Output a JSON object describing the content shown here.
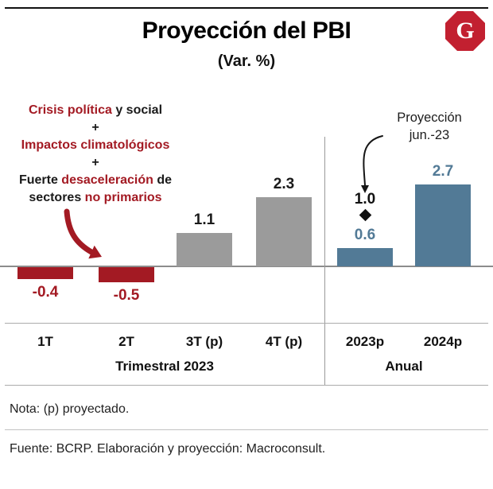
{
  "header": {
    "title": "Proyección del PBI",
    "subtitle": "(Var. %)",
    "logo_letter": "G"
  },
  "annotation": {
    "lines": [
      {
        "segments": [
          {
            "text": "Crisis política",
            "color": "red"
          },
          {
            "text": " y social",
            "color": "black"
          }
        ]
      },
      {
        "segments": [
          {
            "text": "+",
            "color": "black"
          }
        ]
      },
      {
        "segments": [
          {
            "text": "Impactos climatológicos",
            "color": "red"
          }
        ]
      },
      {
        "segments": [
          {
            "text": "+",
            "color": "black"
          }
        ]
      },
      {
        "segments": [
          {
            "text": "Fuerte ",
            "color": "black"
          },
          {
            "text": "desaceleración",
            "color": "red"
          },
          {
            "text": " de",
            "color": "black"
          }
        ]
      },
      {
        "segments": [
          {
            "text": "sectores ",
            "color": "black"
          },
          {
            "text": "no primarios",
            "color": "red"
          }
        ]
      }
    ]
  },
  "projection_callout": {
    "line1": "Proyección",
    "line2": "jun.-23"
  },
  "chart_data": {
    "type": "bar",
    "title": "Proyección del PBI",
    "subtitle": "(Var. %)",
    "ylim": [
      -1,
      3
    ],
    "grid": false,
    "palette": {
      "quarter_negative": "#A31A23",
      "quarter_positive": "#9B9B9B",
      "annual": "#527A96",
      "marker": "#111111"
    },
    "bars": [
      {
        "category": "1T",
        "value": -0.4,
        "label": "-0.4",
        "color": "quarter_negative",
        "label_color": "#A31A23"
      },
      {
        "category": "2T",
        "value": -0.5,
        "label": "-0.5",
        "color": "quarter_negative",
        "label_color": "#A31A23"
      },
      {
        "category": "3T (p)",
        "value": 1.1,
        "label": "1.1",
        "color": "quarter_positive",
        "label_color": "#1a1a1a"
      },
      {
        "category": "4T (p)",
        "value": 2.3,
        "label": "2.3",
        "color": "quarter_positive",
        "label_color": "#1a1a1a"
      },
      {
        "category": "2023p",
        "value": 0.6,
        "label": "0.6",
        "color": "annual",
        "label_color": "#527A96"
      },
      {
        "category": "2024p",
        "value": 2.7,
        "label": "2.7",
        "color": "annual",
        "label_color": "#527A96"
      }
    ],
    "marker": {
      "bar_category": "2023p",
      "value": 1.0,
      "label": "1.0",
      "meaning": "Proyección jun.-23"
    },
    "groups": [
      {
        "label": "Trimestral 2023",
        "bar_indices": [
          0,
          1,
          2,
          3
        ]
      },
      {
        "label": "Anual",
        "bar_indices": [
          4,
          5
        ]
      }
    ]
  },
  "footer": {
    "nota": "Nota: (p) proyectado.",
    "fuente": "Fuente: BCRP. Elaboración y proyección: Macroconsult."
  }
}
